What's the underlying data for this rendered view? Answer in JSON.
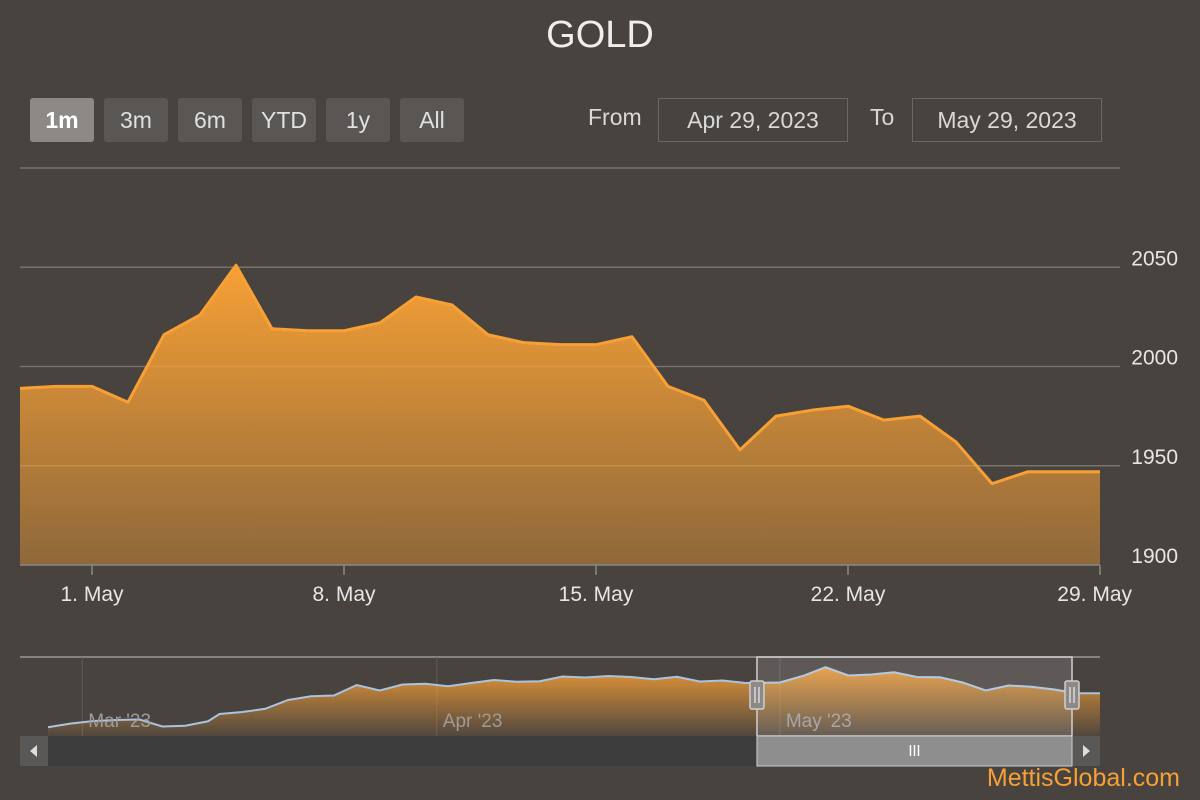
{
  "title": "GOLD",
  "range_selector": {
    "buttons": [
      {
        "label": "1m",
        "active": true
      },
      {
        "label": "3m",
        "active": false
      },
      {
        "label": "6m",
        "active": false
      },
      {
        "label": "YTD",
        "active": false
      },
      {
        "label": "1y",
        "active": false
      },
      {
        "label": "All",
        "active": false
      }
    ],
    "from_label": "From",
    "from_value": "Apr 29, 2023",
    "to_label": "To",
    "to_value": "May 29, 2023"
  },
  "watermark": "MettisGlobal.com",
  "colors": {
    "background": "#48433f",
    "series": "#f7a035",
    "navigator_line": "#a9c3e0",
    "gridline": "#77736f"
  },
  "chart_data": {
    "type": "area",
    "title": "GOLD",
    "y_axis": {
      "range": [
        1900,
        2100
      ],
      "ticks": [
        1900,
        1950,
        2000,
        2050
      ],
      "side": "right",
      "grid": true
    },
    "x_axis": {
      "range": [
        "2023-04-29",
        "2023-05-29"
      ],
      "ticks": [
        {
          "date": "2023-05-01",
          "label": "1. May"
        },
        {
          "date": "2023-05-08",
          "label": "8. May"
        },
        {
          "date": "2023-05-15",
          "label": "15. May"
        },
        {
          "date": "2023-05-22",
          "label": "22. May"
        },
        {
          "date": "2023-05-29",
          "label": "29. May"
        }
      ]
    },
    "series": [
      {
        "points": [
          [
            "2023-04-29",
            1989
          ],
          [
            "2023-04-30",
            1990
          ],
          [
            "2023-05-01",
            1990
          ],
          [
            "2023-05-02",
            1982
          ],
          [
            "2023-05-03",
            2016
          ],
          [
            "2023-05-04",
            2026
          ],
          [
            "2023-05-05",
            2051
          ],
          [
            "2023-05-06",
            2019
          ],
          [
            "2023-05-07",
            2018
          ],
          [
            "2023-05-08",
            2018
          ],
          [
            "2023-05-09",
            2022
          ],
          [
            "2023-05-10",
            2035
          ],
          [
            "2023-05-11",
            2031
          ],
          [
            "2023-05-12",
            2016
          ],
          [
            "2023-05-13",
            2012
          ],
          [
            "2023-05-14",
            2011
          ],
          [
            "2023-05-15",
            2011
          ],
          [
            "2023-05-16",
            2015
          ],
          [
            "2023-05-17",
            1990
          ],
          [
            "2023-05-18",
            1983
          ],
          [
            "2023-05-19",
            1958
          ],
          [
            "2023-05-20",
            1975
          ],
          [
            "2023-05-21",
            1978
          ],
          [
            "2023-05-22",
            1980
          ],
          [
            "2023-05-23",
            1973
          ],
          [
            "2023-05-24",
            1975
          ],
          [
            "2023-05-25",
            1962
          ],
          [
            "2023-05-26",
            1941
          ],
          [
            "2023-05-27",
            1947
          ],
          [
            "2023-05-28",
            1947
          ],
          [
            "2023-05-29",
            1947
          ]
        ]
      }
    ],
    "navigator": {
      "labels": [
        {
          "date": "2023-03-01",
          "label": "Mar '23"
        },
        {
          "date": "2023-04-01",
          "label": "Apr '23"
        },
        {
          "date": "2023-05-01",
          "label": "May '23"
        }
      ],
      "x_range": [
        "2023-02-26",
        "2023-05-29"
      ],
      "selected": [
        "2023-04-29",
        "2023-05-29"
      ],
      "points": [
        [
          "2023-02-26",
          1811
        ],
        [
          "2023-02-28",
          1826
        ],
        [
          "2023-03-02",
          1836
        ],
        [
          "2023-03-04",
          1840
        ],
        [
          "2023-03-06",
          1842
        ],
        [
          "2023-03-08",
          1814
        ],
        [
          "2023-03-10",
          1817
        ],
        [
          "2023-03-12",
          1835
        ],
        [
          "2023-03-13",
          1864
        ],
        [
          "2023-03-15",
          1872
        ],
        [
          "2023-03-17",
          1885
        ],
        [
          "2023-03-19",
          1920
        ],
        [
          "2023-03-21",
          1935
        ],
        [
          "2023-03-23",
          1938
        ],
        [
          "2023-03-25",
          1980
        ],
        [
          "2023-03-27",
          1958
        ],
        [
          "2023-03-29",
          1982
        ],
        [
          "2023-03-31",
          1985
        ],
        [
          "2023-04-02",
          1975
        ],
        [
          "2023-04-04",
          1988
        ],
        [
          "2023-04-06",
          2000
        ],
        [
          "2023-04-08",
          1993
        ],
        [
          "2023-04-10",
          1995
        ],
        [
          "2023-04-12",
          2014
        ],
        [
          "2023-04-14",
          2010
        ],
        [
          "2023-04-16",
          2016
        ],
        [
          "2023-04-18",
          2012
        ],
        [
          "2023-04-20",
          2003
        ],
        [
          "2023-04-22",
          2013
        ],
        [
          "2023-04-24",
          1994
        ],
        [
          "2023-04-26",
          1998
        ],
        [
          "2023-04-28",
          1988
        ],
        [
          "2023-04-29",
          1989
        ],
        [
          "2023-05-01",
          1990
        ],
        [
          "2023-05-03",
          2016
        ],
        [
          "2023-05-05",
          2051
        ],
        [
          "2023-05-07",
          2018
        ],
        [
          "2023-05-09",
          2022
        ],
        [
          "2023-05-11",
          2031
        ],
        [
          "2023-05-13",
          2012
        ],
        [
          "2023-05-15",
          2011
        ],
        [
          "2023-05-17",
          1990
        ],
        [
          "2023-05-19",
          1958
        ],
        [
          "2023-05-21",
          1978
        ],
        [
          "2023-05-23",
          1973
        ],
        [
          "2023-05-25",
          1962
        ],
        [
          "2023-05-27",
          1947
        ],
        [
          "2023-05-29",
          1947
        ]
      ]
    }
  }
}
